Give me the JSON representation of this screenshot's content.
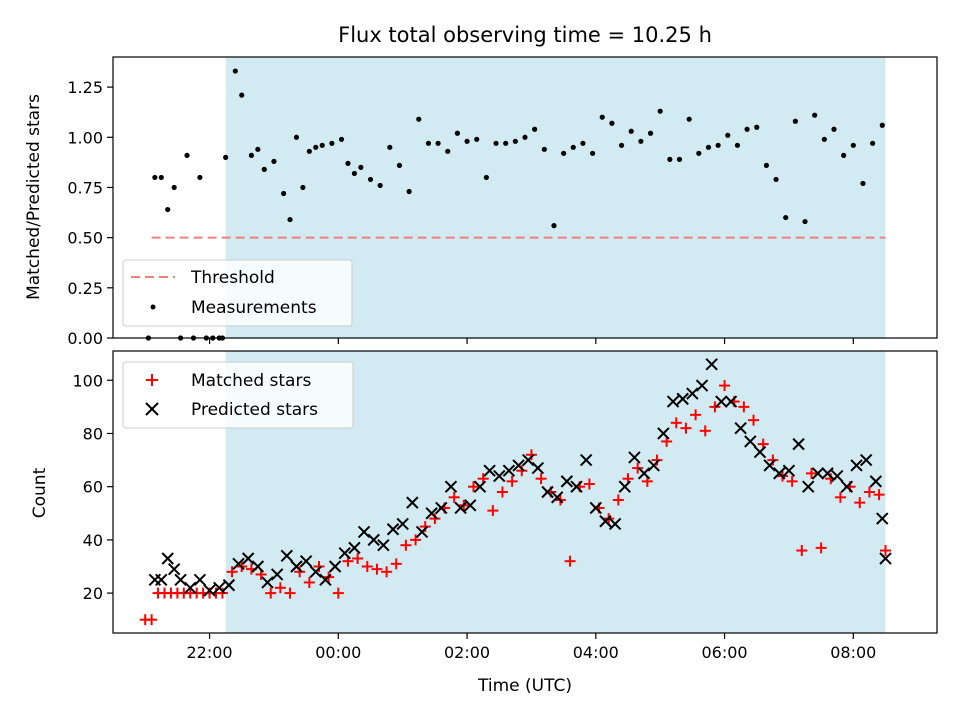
{
  "chart_data": [
    {
      "type": "scatter",
      "title": "Flux total observing time = 10.25 h",
      "xlabel": "",
      "ylabel": "Matched/Predicted stars",
      "xlim_hours": [
        -3.5,
        9.3
      ],
      "ylim": [
        0.0,
        1.4
      ],
      "yticks": [
        0.0,
        0.25,
        0.5,
        0.75,
        1.0,
        1.25
      ],
      "ytick_labels": [
        "0.00",
        "0.25",
        "0.50",
        "0.75",
        "1.00",
        "1.25"
      ],
      "shaded_span_hours": [
        -1.75,
        8.5
      ],
      "shaded_color": "#add8e6",
      "legend": {
        "position": "lower-left",
        "entries": [
          "Threshold",
          "Measurements"
        ]
      },
      "threshold": {
        "name": "Threshold",
        "value": 0.5,
        "x_range_hours": [
          -2.9,
          8.5
        ],
        "color": "#f08080"
      },
      "series": [
        {
          "name": "Measurements",
          "color": "#000000",
          "marker": "dot",
          "x_hours": [
            -2.95,
            -2.85,
            -2.75,
            -2.65,
            -2.55,
            -2.45,
            -2.35,
            -2.25,
            -2.15,
            -2.05,
            -1.95,
            -1.85,
            -1.8,
            -1.75,
            -1.6,
            -1.5,
            -1.35,
            -1.25,
            -1.15,
            -1.0,
            -0.85,
            -0.75,
            -0.65,
            -0.55,
            -0.45,
            -0.35,
            -0.25,
            -0.1,
            0.05,
            0.15,
            0.25,
            0.35,
            0.5,
            0.65,
            0.8,
            0.95,
            1.1,
            1.25,
            1.4,
            1.55,
            1.7,
            1.85,
            2.0,
            2.15,
            2.3,
            2.45,
            2.6,
            2.75,
            2.9,
            3.05,
            3.2,
            3.35,
            3.5,
            3.65,
            3.8,
            3.95,
            4.1,
            4.25,
            4.4,
            4.55,
            4.7,
            4.85,
            5.0,
            5.15,
            5.3,
            5.45,
            5.6,
            5.75,
            5.9,
            6.05,
            6.2,
            6.35,
            6.5,
            6.65,
            6.8,
            6.95,
            7.1,
            7.25,
            7.4,
            7.55,
            7.7,
            7.85,
            8.0,
            8.15,
            8.3,
            8.45
          ],
          "values": [
            0.0,
            0.8,
            0.8,
            0.64,
            0.75,
            0.0,
            0.91,
            0.0,
            0.8,
            0.0,
            0.0,
            0.0,
            0.0,
            0.9,
            1.33,
            1.21,
            0.91,
            0.94,
            0.84,
            0.88,
            0.72,
            0.59,
            1.0,
            0.75,
            0.93,
            0.95,
            0.96,
            0.97,
            0.99,
            0.87,
            0.82,
            0.85,
            0.79,
            0.76,
            0.95,
            0.86,
            0.73,
            1.09,
            0.97,
            0.97,
            0.93,
            1.02,
            0.98,
            0.99,
            0.8,
            0.97,
            0.97,
            0.98,
            1.0,
            1.04,
            0.94,
            0.56,
            0.92,
            0.95,
            0.97,
            0.92,
            1.1,
            1.07,
            0.96,
            1.03,
            0.98,
            1.02,
            1.13,
            0.89,
            0.89,
            1.09,
            0.92,
            0.95,
            0.96,
            1.01,
            0.96,
            1.04,
            1.05,
            0.86,
            0.79,
            0.6,
            1.08,
            0.58,
            1.11,
            0.99,
            1.04,
            0.91,
            0.96,
            0.77,
            0.97,
            1.06
          ]
        }
      ]
    },
    {
      "type": "scatter",
      "title": "",
      "xlabel": "Time (UTC)",
      "ylabel": "Count",
      "xlim_hours": [
        -3.5,
        9.3
      ],
      "ylim": [
        5,
        111
      ],
      "yticks": [
        20,
        40,
        60,
        80,
        100
      ],
      "ytick_labels": [
        "20",
        "40",
        "60",
        "80",
        "100"
      ],
      "xticks_hours": [
        -2,
        0,
        2,
        4,
        6,
        8
      ],
      "xtick_labels": [
        "22:00",
        "00:00",
        "02:00",
        "04:00",
        "06:00",
        "08:00"
      ],
      "shaded_span_hours": [
        -1.75,
        8.5
      ],
      "shaded_color": "#add8e6",
      "legend": {
        "position": "upper-left",
        "entries": [
          "Matched stars",
          "Predicted stars"
        ]
      },
      "series": [
        {
          "name": "Matched stars",
          "color": "#ff0000",
          "marker": "plus",
          "x_hours": [
            -3.0,
            -2.9,
            -2.8,
            -2.7,
            -2.6,
            -2.5,
            -2.4,
            -2.3,
            -2.2,
            -2.1,
            -2.0,
            -1.9,
            -1.8,
            -1.65,
            -1.5,
            -1.35,
            -1.2,
            -1.05,
            -0.9,
            -0.75,
            -0.6,
            -0.45,
            -0.3,
            -0.15,
            0.0,
            0.15,
            0.3,
            0.45,
            0.6,
            0.75,
            0.9,
            1.05,
            1.2,
            1.35,
            1.5,
            1.65,
            1.8,
            1.95,
            2.1,
            2.25,
            2.4,
            2.55,
            2.7,
            2.85,
            3.0,
            3.15,
            3.3,
            3.45,
            3.6,
            3.75,
            3.9,
            4.05,
            4.2,
            4.35,
            4.5,
            4.65,
            4.8,
            4.95,
            5.1,
            5.25,
            5.4,
            5.55,
            5.7,
            5.85,
            6.0,
            6.15,
            6.3,
            6.45,
            6.6,
            6.75,
            6.9,
            7.05,
            7.2,
            7.35,
            7.5,
            7.65,
            7.8,
            7.95,
            8.1,
            8.25,
            8.4,
            8.5
          ],
          "values": [
            10,
            10,
            20,
            20,
            20,
            20,
            20,
            20,
            20,
            20,
            20,
            20,
            20,
            28,
            30,
            29,
            27,
            20,
            22,
            20,
            28,
            24,
            30,
            26,
            20,
            32,
            33,
            30,
            29,
            28,
            31,
            38,
            40,
            45,
            48,
            52,
            56,
            53,
            60,
            63,
            51,
            58,
            62,
            66,
            72,
            63,
            58,
            55,
            32,
            60,
            61,
            52,
            48,
            55,
            63,
            67,
            62,
            70,
            77,
            84,
            82,
            87,
            81,
            90,
            98,
            92,
            90,
            85,
            76,
            70,
            64,
            62,
            36,
            65,
            37,
            63,
            56,
            60,
            54,
            58,
            57,
            36
          ]
        },
        {
          "name": "Predicted stars",
          "color": "#000000",
          "marker": "x",
          "x_hours": [
            -2.85,
            -2.75,
            -2.65,
            -2.55,
            -2.45,
            -2.3,
            -2.15,
            -2.0,
            -1.85,
            -1.7,
            -1.55,
            -1.4,
            -1.25,
            -1.1,
            -0.95,
            -0.8,
            -0.65,
            -0.5,
            -0.35,
            -0.2,
            -0.05,
            0.1,
            0.25,
            0.4,
            0.55,
            0.7,
            0.85,
            1.0,
            1.15,
            1.3,
            1.45,
            1.6,
            1.75,
            1.9,
            2.05,
            2.2,
            2.35,
            2.5,
            2.65,
            2.8,
            2.95,
            3.1,
            3.25,
            3.4,
            3.55,
            3.7,
            3.85,
            4.0,
            4.15,
            4.3,
            4.45,
            4.6,
            4.75,
            4.9,
            5.05,
            5.2,
            5.35,
            5.5,
            5.65,
            5.8,
            5.95,
            6.1,
            6.25,
            6.4,
            6.55,
            6.7,
            6.85,
            7.0,
            7.15,
            7.3,
            7.45,
            7.6,
            7.75,
            7.9,
            8.05,
            8.2,
            8.35,
            8.45,
            8.5
          ],
          "values": [
            25,
            25,
            33,
            29,
            25,
            22,
            25,
            21,
            22,
            23,
            31,
            33,
            30,
            24,
            27,
            34,
            30,
            32,
            28,
            25,
            30,
            35,
            37,
            43,
            40,
            38,
            44,
            46,
            54,
            43,
            50,
            52,
            60,
            52,
            53,
            60,
            66,
            64,
            66,
            68,
            70,
            67,
            58,
            56,
            62,
            60,
            70,
            52,
            47,
            46,
            60,
            71,
            65,
            68,
            80,
            92,
            93,
            95,
            98,
            106,
            92,
            92,
            82,
            77,
            73,
            68,
            65,
            66,
            76,
            60,
            65,
            65,
            64,
            60,
            68,
            70,
            62,
            48,
            33
          ]
        }
      ]
    }
  ]
}
